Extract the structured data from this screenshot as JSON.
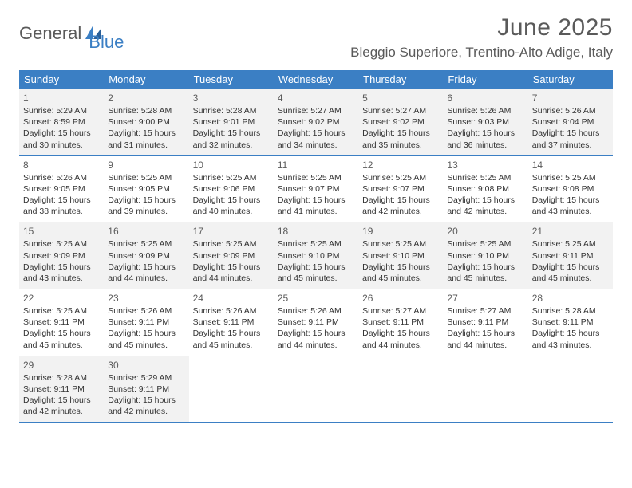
{
  "logo": {
    "text1": "General",
    "text2": "Blue",
    "icon_color": "#3b7fc4"
  },
  "title": {
    "month_year": "June 2025",
    "location": "Bleggio Superiore, Trentino-Alto Adige, Italy"
  },
  "colors": {
    "header_bg": "#3b7fc4",
    "header_text": "#ffffff",
    "shaded_cell": "#f2f2f2",
    "border": "#3b7fc4",
    "text": "#333333"
  },
  "day_labels": [
    "Sunday",
    "Monday",
    "Tuesday",
    "Wednesday",
    "Thursday",
    "Friday",
    "Saturday"
  ],
  "weeks": [
    {
      "shaded": true,
      "days": [
        {
          "num": "1",
          "sunrise": "Sunrise: 5:29 AM",
          "sunset": "Sunset: 8:59 PM",
          "daylight1": "Daylight: 15 hours",
          "daylight2": "and 30 minutes."
        },
        {
          "num": "2",
          "sunrise": "Sunrise: 5:28 AM",
          "sunset": "Sunset: 9:00 PM",
          "daylight1": "Daylight: 15 hours",
          "daylight2": "and 31 minutes."
        },
        {
          "num": "3",
          "sunrise": "Sunrise: 5:28 AM",
          "sunset": "Sunset: 9:01 PM",
          "daylight1": "Daylight: 15 hours",
          "daylight2": "and 32 minutes."
        },
        {
          "num": "4",
          "sunrise": "Sunrise: 5:27 AM",
          "sunset": "Sunset: 9:02 PM",
          "daylight1": "Daylight: 15 hours",
          "daylight2": "and 34 minutes."
        },
        {
          "num": "5",
          "sunrise": "Sunrise: 5:27 AM",
          "sunset": "Sunset: 9:02 PM",
          "daylight1": "Daylight: 15 hours",
          "daylight2": "and 35 minutes."
        },
        {
          "num": "6",
          "sunrise": "Sunrise: 5:26 AM",
          "sunset": "Sunset: 9:03 PM",
          "daylight1": "Daylight: 15 hours",
          "daylight2": "and 36 minutes."
        },
        {
          "num": "7",
          "sunrise": "Sunrise: 5:26 AM",
          "sunset": "Sunset: 9:04 PM",
          "daylight1": "Daylight: 15 hours",
          "daylight2": "and 37 minutes."
        }
      ]
    },
    {
      "shaded": false,
      "days": [
        {
          "num": "8",
          "sunrise": "Sunrise: 5:26 AM",
          "sunset": "Sunset: 9:05 PM",
          "daylight1": "Daylight: 15 hours",
          "daylight2": "and 38 minutes."
        },
        {
          "num": "9",
          "sunrise": "Sunrise: 5:25 AM",
          "sunset": "Sunset: 9:05 PM",
          "daylight1": "Daylight: 15 hours",
          "daylight2": "and 39 minutes."
        },
        {
          "num": "10",
          "sunrise": "Sunrise: 5:25 AM",
          "sunset": "Sunset: 9:06 PM",
          "daylight1": "Daylight: 15 hours",
          "daylight2": "and 40 minutes."
        },
        {
          "num": "11",
          "sunrise": "Sunrise: 5:25 AM",
          "sunset": "Sunset: 9:07 PM",
          "daylight1": "Daylight: 15 hours",
          "daylight2": "and 41 minutes."
        },
        {
          "num": "12",
          "sunrise": "Sunrise: 5:25 AM",
          "sunset": "Sunset: 9:07 PM",
          "daylight1": "Daylight: 15 hours",
          "daylight2": "and 42 minutes."
        },
        {
          "num": "13",
          "sunrise": "Sunrise: 5:25 AM",
          "sunset": "Sunset: 9:08 PM",
          "daylight1": "Daylight: 15 hours",
          "daylight2": "and 42 minutes."
        },
        {
          "num": "14",
          "sunrise": "Sunrise: 5:25 AM",
          "sunset": "Sunset: 9:08 PM",
          "daylight1": "Daylight: 15 hours",
          "daylight2": "and 43 minutes."
        }
      ]
    },
    {
      "shaded": true,
      "days": [
        {
          "num": "15",
          "sunrise": "Sunrise: 5:25 AM",
          "sunset": "Sunset: 9:09 PM",
          "daylight1": "Daylight: 15 hours",
          "daylight2": "and 43 minutes."
        },
        {
          "num": "16",
          "sunrise": "Sunrise: 5:25 AM",
          "sunset": "Sunset: 9:09 PM",
          "daylight1": "Daylight: 15 hours",
          "daylight2": "and 44 minutes."
        },
        {
          "num": "17",
          "sunrise": "Sunrise: 5:25 AM",
          "sunset": "Sunset: 9:09 PM",
          "daylight1": "Daylight: 15 hours",
          "daylight2": "and 44 minutes."
        },
        {
          "num": "18",
          "sunrise": "Sunrise: 5:25 AM",
          "sunset": "Sunset: 9:10 PM",
          "daylight1": "Daylight: 15 hours",
          "daylight2": "and 45 minutes."
        },
        {
          "num": "19",
          "sunrise": "Sunrise: 5:25 AM",
          "sunset": "Sunset: 9:10 PM",
          "daylight1": "Daylight: 15 hours",
          "daylight2": "and 45 minutes."
        },
        {
          "num": "20",
          "sunrise": "Sunrise: 5:25 AM",
          "sunset": "Sunset: 9:10 PM",
          "daylight1": "Daylight: 15 hours",
          "daylight2": "and 45 minutes."
        },
        {
          "num": "21",
          "sunrise": "Sunrise: 5:25 AM",
          "sunset": "Sunset: 9:11 PM",
          "daylight1": "Daylight: 15 hours",
          "daylight2": "and 45 minutes."
        }
      ]
    },
    {
      "shaded": false,
      "days": [
        {
          "num": "22",
          "sunrise": "Sunrise: 5:25 AM",
          "sunset": "Sunset: 9:11 PM",
          "daylight1": "Daylight: 15 hours",
          "daylight2": "and 45 minutes."
        },
        {
          "num": "23",
          "sunrise": "Sunrise: 5:26 AM",
          "sunset": "Sunset: 9:11 PM",
          "daylight1": "Daylight: 15 hours",
          "daylight2": "and 45 minutes."
        },
        {
          "num": "24",
          "sunrise": "Sunrise: 5:26 AM",
          "sunset": "Sunset: 9:11 PM",
          "daylight1": "Daylight: 15 hours",
          "daylight2": "and 45 minutes."
        },
        {
          "num": "25",
          "sunrise": "Sunrise: 5:26 AM",
          "sunset": "Sunset: 9:11 PM",
          "daylight1": "Daylight: 15 hours",
          "daylight2": "and 44 minutes."
        },
        {
          "num": "26",
          "sunrise": "Sunrise: 5:27 AM",
          "sunset": "Sunset: 9:11 PM",
          "daylight1": "Daylight: 15 hours",
          "daylight2": "and 44 minutes."
        },
        {
          "num": "27",
          "sunrise": "Sunrise: 5:27 AM",
          "sunset": "Sunset: 9:11 PM",
          "daylight1": "Daylight: 15 hours",
          "daylight2": "and 44 minutes."
        },
        {
          "num": "28",
          "sunrise": "Sunrise: 5:28 AM",
          "sunset": "Sunset: 9:11 PM",
          "daylight1": "Daylight: 15 hours",
          "daylight2": "and 43 minutes."
        }
      ]
    },
    {
      "shaded": true,
      "days": [
        {
          "num": "29",
          "sunrise": "Sunrise: 5:28 AM",
          "sunset": "Sunset: 9:11 PM",
          "daylight1": "Daylight: 15 hours",
          "daylight2": "and 42 minutes."
        },
        {
          "num": "30",
          "sunrise": "Sunrise: 5:29 AM",
          "sunset": "Sunset: 9:11 PM",
          "daylight1": "Daylight: 15 hours",
          "daylight2": "and 42 minutes."
        },
        null,
        null,
        null,
        null,
        null
      ]
    }
  ]
}
